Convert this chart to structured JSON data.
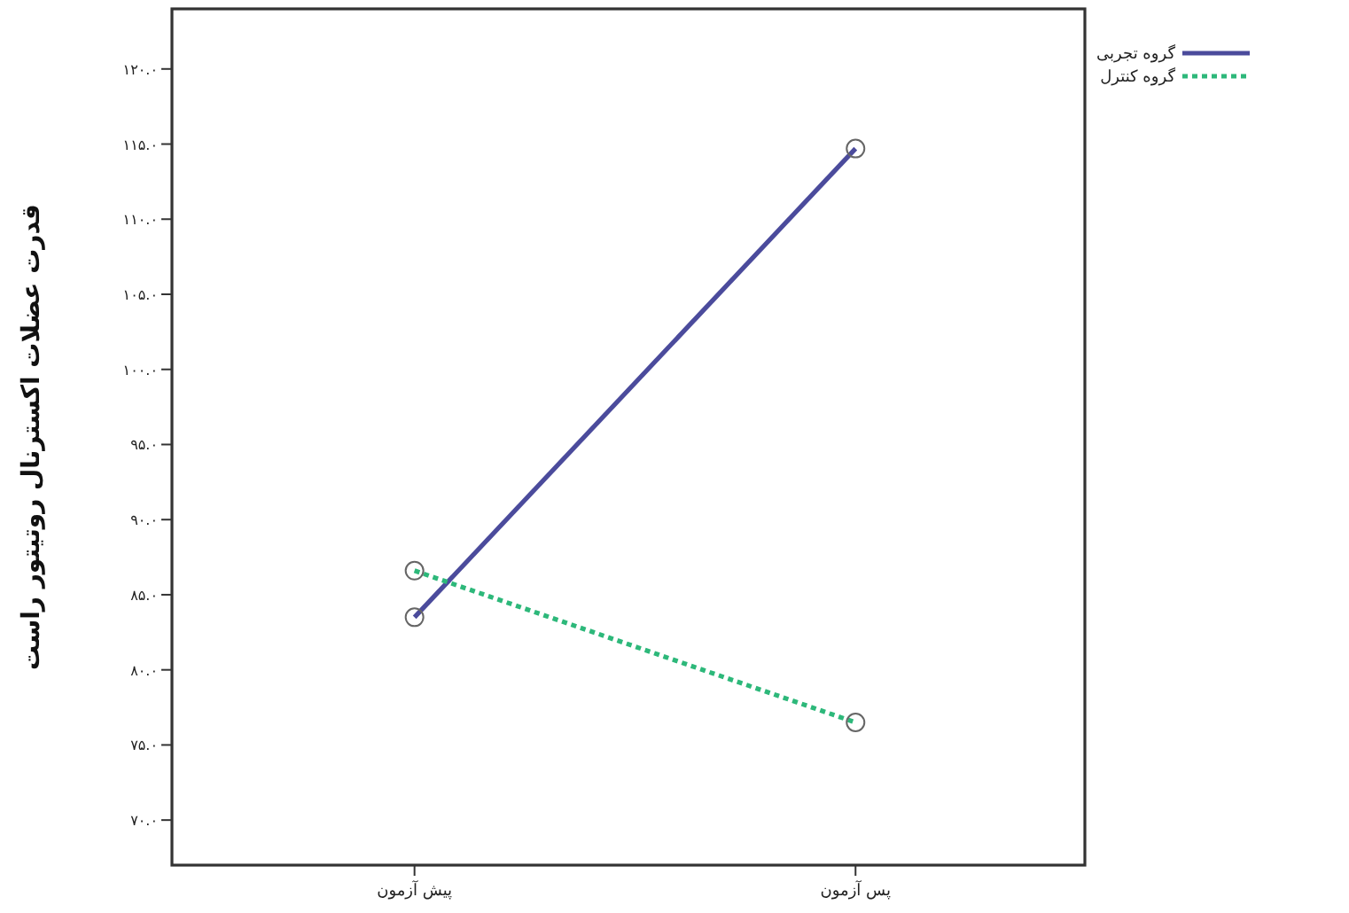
{
  "chart_data": {
    "type": "line",
    "ylabel": "قدرت عضلات اکسترنال روتیتور راست",
    "categories": [
      "پیش آزمون",
      "پس آزمون"
    ],
    "series": [
      {
        "name": "گروه تجربی",
        "color": "#4b4b9c",
        "line_style": "solid",
        "values": [
          83.5,
          114.7
        ]
      },
      {
        "name": "گروه کنترل",
        "color": "#2db87a",
        "line_style": "dotted",
        "values": [
          86.6,
          76.5
        ]
      }
    ],
    "ylim": [
      67,
      124
    ],
    "yticks": [
      {
        "value": 70,
        "label": "۷۰.۰"
      },
      {
        "value": 75,
        "label": "۷۵.۰"
      },
      {
        "value": 80,
        "label": "۸۰.۰"
      },
      {
        "value": 85,
        "label": "۸۵.۰"
      },
      {
        "value": 90,
        "label": "۹۰.۰"
      },
      {
        "value": 95,
        "label": "۹۵.۰"
      },
      {
        "value": 100,
        "label": "۱۰۰.۰"
      },
      {
        "value": 105,
        "label": "۱۰۵.۰"
      },
      {
        "value": 110,
        "label": "۱۱۰.۰"
      },
      {
        "value": 115,
        "label": "۱۱۵.۰"
      },
      {
        "value": 120,
        "label": "۱۲۰.۰"
      }
    ],
    "marker": "circle",
    "grid": false,
    "legend": "top right"
  }
}
